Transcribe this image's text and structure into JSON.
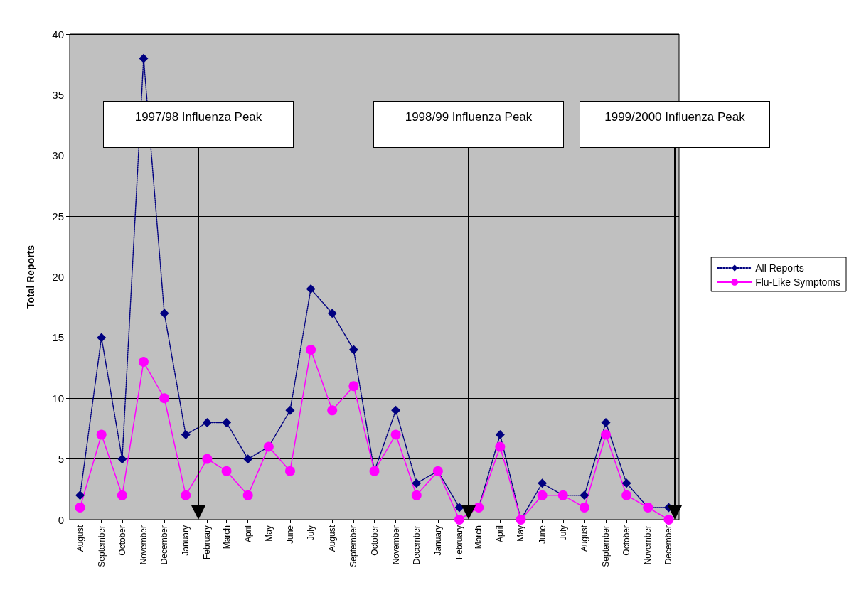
{
  "chart_data": {
    "type": "line",
    "ylabel": "Total Reports",
    "x": [
      "1997-08",
      "1997-09",
      "1997-10",
      "1997-11",
      "1997-12",
      "1998-01",
      "1998-02",
      "1998-03",
      "1998-04",
      "1998-05",
      "1998-06",
      "1998-07",
      "1998-08",
      "1998-09",
      "1998-10",
      "1998-11",
      "1998-12",
      "1999-01",
      "1999-02",
      "1999-03",
      "1999-04",
      "1999-05",
      "1999-06",
      "1999-07",
      "1999-08",
      "1999-09",
      "1999-10",
      "1999-11",
      "1999-12"
    ],
    "series": [
      {
        "name": "All Reports",
        "color": "#000080",
        "marker": "diamond",
        "line_style": "dotted",
        "values": [
          2,
          15,
          5,
          38,
          17,
          7,
          8,
          8,
          5,
          6,
          9,
          19,
          17,
          14,
          4,
          9,
          3,
          4,
          1,
          1,
          7,
          0,
          3,
          2,
          2,
          8,
          3,
          1,
          1
        ]
      },
      {
        "name": "Flu-Like Symptoms",
        "color": "#ff00ff",
        "marker": "circle",
        "line_style": "solid",
        "values": [
          1,
          7,
          2,
          13,
          10,
          2,
          5,
          4,
          2,
          6,
          4,
          14,
          9,
          11,
          4,
          7,
          2,
          4,
          0,
          1,
          6,
          0,
          2,
          2,
          1,
          7,
          2,
          1,
          0
        ]
      }
    ],
    "xlim": [
      "1997-07-17",
      "1999-12-16"
    ],
    "xticks": [
      {
        "value": "1997-08",
        "label": "August"
      },
      {
        "value": "1997-09",
        "label": "September"
      },
      {
        "value": "1997-10",
        "label": "October"
      },
      {
        "value": "1997-11",
        "label": "November"
      },
      {
        "value": "1997-12",
        "label": "December"
      },
      {
        "value": "1998-01",
        "label": "January"
      },
      {
        "value": "1998-02",
        "label": "February"
      },
      {
        "value": "1998-03",
        "label": "March"
      },
      {
        "value": "1998-04",
        "label": "April"
      },
      {
        "value": "1998-05",
        "label": "May"
      },
      {
        "value": "1998-06",
        "label": "June"
      },
      {
        "value": "1998-07",
        "label": "July"
      },
      {
        "value": "1998-08",
        "label": "August"
      },
      {
        "value": "1998-09",
        "label": "September"
      },
      {
        "value": "1998-10",
        "label": "October"
      },
      {
        "value": "1998-11",
        "label": "November"
      },
      {
        "value": "1998-12",
        "label": "December"
      },
      {
        "value": "1999-01",
        "label": "January"
      },
      {
        "value": "1999-02",
        "label": "February"
      },
      {
        "value": "1999-03",
        "label": "March"
      },
      {
        "value": "1999-04",
        "label": "April"
      },
      {
        "value": "1999-05",
        "label": "May"
      },
      {
        "value": "1999-06",
        "label": "June"
      },
      {
        "value": "1999-07",
        "label": "July"
      },
      {
        "value": "1999-08",
        "label": "August"
      },
      {
        "value": "1999-09",
        "label": "September"
      },
      {
        "value": "1999-10",
        "label": "October"
      },
      {
        "value": "1999-11",
        "label": "November"
      },
      {
        "value": "1999-12",
        "label": "December"
      }
    ],
    "ylim": [
      0,
      40
    ],
    "yticks": [
      0,
      5,
      10,
      15,
      20,
      25,
      30,
      35,
      40
    ],
    "grid": "y",
    "legend": "right",
    "ref_lines": [
      {
        "axis": "x",
        "value": "1998-01-19",
        "label": "1997/98 Influenza Peak"
      },
      {
        "axis": "x",
        "value": "1999-02-14",
        "label": "1998/99 Influenza Peak"
      },
      {
        "axis": "x",
        "value": "1999-12-10",
        "label": "1999/2000 Influenza Peak"
      }
    ]
  }
}
